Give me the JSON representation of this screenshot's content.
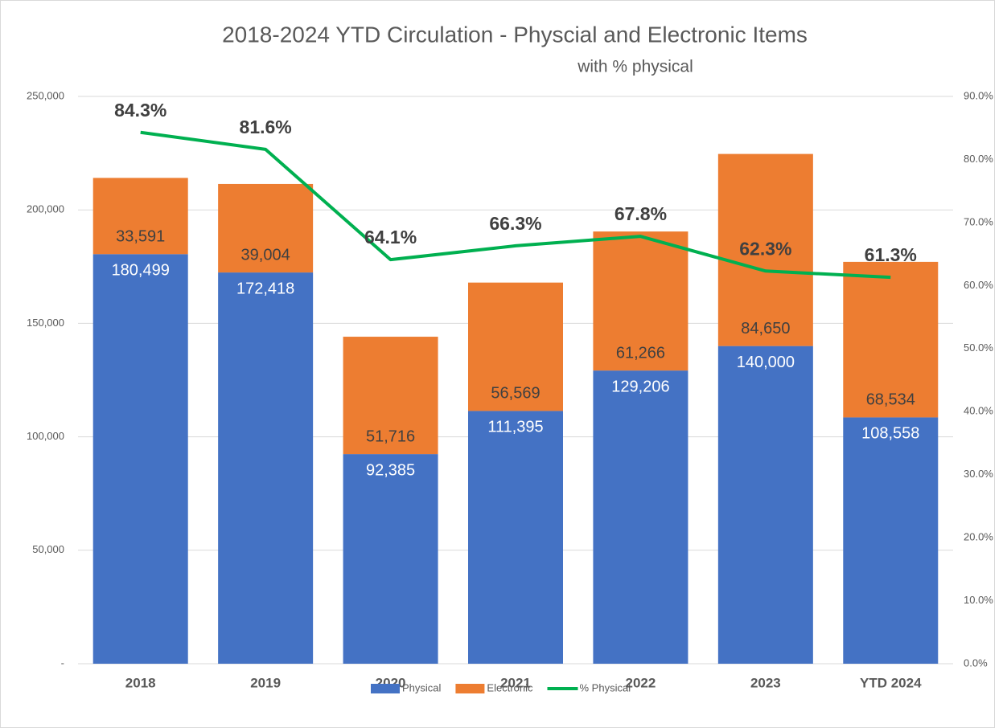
{
  "chart_data": {
    "type": "bar",
    "stacked": true,
    "title": "2018-2024 YTD Circulation - Physcial and Electronic Items",
    "subtitle": "with % physical",
    "categories": [
      "2018",
      "2019",
      "2020",
      "2021",
      "2022",
      "2023",
      "YTD 2024"
    ],
    "series": [
      {
        "name": "Physical",
        "color": "#4472c4",
        "type": "bar",
        "values": [
          180499,
          172418,
          92385,
          111395,
          129206,
          140000,
          108558
        ],
        "value_labels": [
          "180,499",
          "172,418",
          "92,385",
          "111,395",
          "129,206",
          "140,000",
          "108,558"
        ]
      },
      {
        "name": "Electronic",
        "color": "#ed7d31",
        "type": "bar",
        "values": [
          33591,
          39004,
          51716,
          56569,
          61266,
          84650,
          68534
        ],
        "value_labels": [
          "33,591",
          "39,004",
          "51,716",
          "56,569",
          "61,266",
          "84,650",
          "68,534"
        ]
      },
      {
        "name": "% Physical",
        "color": "#00b050",
        "type": "line",
        "axis": "y2",
        "values": [
          84.3,
          81.6,
          64.1,
          66.3,
          67.8,
          62.3,
          61.3
        ],
        "value_labels": [
          "84.3%",
          "81.6%",
          "64.1%",
          "66.3%",
          "67.8%",
          "62.3%",
          "61.3%"
        ]
      }
    ],
    "ylim": [
      0,
      250000
    ],
    "yticks": [
      {
        "value": 0,
        "label": "-"
      },
      {
        "value": 50000,
        "label": "50,000"
      },
      {
        "value": 100000,
        "label": "100,000"
      },
      {
        "value": 150000,
        "label": "150,000"
      },
      {
        "value": 200000,
        "label": "200,000"
      },
      {
        "value": 250000,
        "label": "250,000"
      }
    ],
    "y2lim": [
      0,
      90
    ],
    "y2ticks": [
      {
        "value": 0,
        "label": "0.0%"
      },
      {
        "value": 10,
        "label": "10.0%"
      },
      {
        "value": 20,
        "label": "20.0%"
      },
      {
        "value": 30,
        "label": "30.0%"
      },
      {
        "value": 40,
        "label": "40.0%"
      },
      {
        "value": 50,
        "label": "50.0%"
      },
      {
        "value": 60,
        "label": "60.0%"
      },
      {
        "value": 70,
        "label": "70.0%"
      },
      {
        "value": 80,
        "label": "80.0%"
      },
      {
        "value": 90,
        "label": "90.0%"
      }
    ],
    "grid": true,
    "legend": "bottom"
  }
}
